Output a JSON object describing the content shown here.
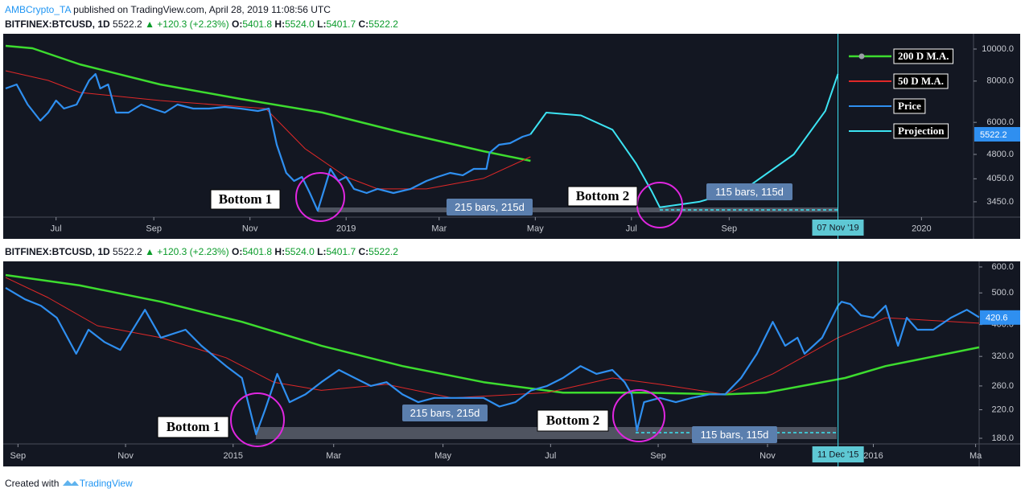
{
  "header": {
    "author": "AMBCrypto_TA",
    "text": "published on TradingView.com, April 28, 2019 11:08:56 UTC"
  },
  "chart_data": [
    {
      "type": "line",
      "symbol": {
        "name": "BITFINEX:BTCUSD, 1D",
        "last": "5522.2",
        "change": "▲ +120.3 (+2.23%)",
        "ohlc": [
          {
            "key": "O:",
            "value": "5401.8"
          },
          {
            "key": "H:",
            "value": "5524.0"
          },
          {
            "key": "L:",
            "value": "5401.7"
          },
          {
            "key": "C:",
            "value": "5522.2"
          }
        ]
      },
      "log": true,
      "ylim": [
        3100,
        11000
      ],
      "yticks": [
        {
          "value": 3450,
          "label": "3450.0"
        },
        {
          "value": 4050,
          "label": "4050.0"
        },
        {
          "value": 4800,
          "label": "4800.0"
        },
        {
          "value": 6000,
          "label": "6000.0"
        },
        {
          "value": 8000,
          "label": "8000.0"
        },
        {
          "value": 10000,
          "label": "10000.0"
        }
      ],
      "xlim": [
        0,
        614
      ],
      "xticks": [
        {
          "value": 32,
          "label": "Jul"
        },
        {
          "value": 94,
          "label": "Sep"
        },
        {
          "value": 155,
          "label": "Nov"
        },
        {
          "value": 216,
          "label": "2019"
        },
        {
          "value": 275,
          "label": "Mar"
        },
        {
          "value": 336,
          "label": "May"
        },
        {
          "value": 397,
          "label": "Jul"
        },
        {
          "value": 459,
          "label": "Sep"
        },
        {
          "value": 581,
          "label": "2020"
        }
      ],
      "series": [
        {
          "name": "200 D M.A.",
          "color": "#3ddc2f",
          "x": [
            0,
            17,
            47,
            98,
            149,
            201,
            252,
            303,
            333
          ],
          "values": [
            10227,
            10056,
            8990,
            7816,
            7066,
            6423,
            5584,
            4909,
            4590
          ]
        },
        {
          "name": "50 D M.A.",
          "color": "#e02828",
          "x": [
            0,
            27,
            47,
            98,
            165,
            190,
            216,
            236,
            267,
            303,
            333
          ],
          "values": [
            8597,
            8038,
            7391,
            6988,
            6606,
            4992,
            4103,
            3773,
            3773,
            4058,
            4720
          ]
        },
        {
          "name": "Price",
          "color": "#2f8ff0",
          "x": [
            0,
            7,
            14,
            22,
            27,
            32,
            37,
            45,
            53,
            57,
            60,
            65,
            70,
            78,
            86,
            93,
            101,
            109,
            119,
            129,
            139,
            149,
            160,
            167,
            172,
            178,
            183,
            188,
            193,
            198,
            203,
            206,
            211,
            216,
            221,
            229,
            236,
            246,
            257,
            267,
            274,
            282,
            290,
            297,
            305,
            307,
            313,
            320,
            328,
            333
          ],
          "values": [
            7600,
            7816,
            6795,
            6073,
            6423,
            6988,
            6606,
            6795,
            8038,
            8407,
            7600,
            7816,
            6423,
            6423,
            6795,
            6606,
            6423,
            6795,
            6606,
            6606,
            6682,
            6606,
            6496,
            6606,
            5134,
            4220,
            3990,
            4103,
            3667,
            3243,
            3880,
            4340,
            3990,
            4103,
            3773,
            3667,
            3773,
            3667,
            3773,
            3990,
            4103,
            4220,
            4150,
            4340,
            4340,
            4854,
            5134,
            5192,
            5430,
            5522
          ]
        },
        {
          "name": "Projection",
          "color": "#3ce3f2",
          "x": [
            333,
            343,
            365,
            385,
            400,
            410,
            415,
            440,
            470,
            500,
            520,
            528
          ],
          "values": [
            5522,
            6423,
            6300,
            5700,
            4500,
            3700,
            3319,
            3450,
            3800,
            4800,
            6500,
            8407
          ]
        }
      ],
      "last_price": {
        "value": 5522.2,
        "label": "5522.2"
      },
      "event_line": {
        "x": 528,
        "label": "07 Nov '19"
      },
      "annotations": {
        "bottom_1": "Bottom 1",
        "bottom_2": "Bottom 2",
        "span_1": "215 bars, 215d",
        "span_2": "115 bars, 115d"
      },
      "legend": "top-right"
    },
    {
      "type": "line",
      "symbol": {
        "name": "BITFINEX:BTCUSD, 1D",
        "last": "5522.2",
        "change": "▲ +120.3 (+2.23%)",
        "ohlc": [
          {
            "key": "O:",
            "value": "5401.8"
          },
          {
            "key": "H:",
            "value": "5524.0"
          },
          {
            "key": "L:",
            "value": "5401.7"
          },
          {
            "key": "C:",
            "value": "5522.2"
          }
        ]
      },
      "log": true,
      "ylim": [
        173,
        617
      ],
      "yticks": [
        {
          "value": 180,
          "label": "180.0"
        },
        {
          "value": 220,
          "label": "220.0"
        },
        {
          "value": 260,
          "label": "260.0"
        },
        {
          "value": 320,
          "label": "320.0"
        },
        {
          "value": 400,
          "label": "400.0"
        },
        {
          "value": 500,
          "label": "500.0"
        },
        {
          "value": 600,
          "label": "600.0"
        }
      ],
      "xlim": [
        0,
        552
      ],
      "xticks": [
        {
          "value": 7,
          "label": "Sep"
        },
        {
          "value": 68,
          "label": "Nov"
        },
        {
          "value": 129,
          "label": "2015"
        },
        {
          "value": 186,
          "label": "Mar"
        },
        {
          "value": 248,
          "label": "May"
        },
        {
          "value": 309,
          "label": "Jul"
        },
        {
          "value": 370,
          "label": "Sep"
        },
        {
          "value": 432,
          "label": "Nov"
        },
        {
          "value": 492,
          "label": "2016"
        },
        {
          "value": 550,
          "label": "Ma"
        }
      ],
      "series": [
        {
          "color": "#3ddc2f",
          "x": [
            0,
            42,
            88,
            134,
            179,
            225,
            271,
            316,
            362,
            408,
            431,
            476,
            499,
            552
          ],
          "values": [
            567,
            527,
            470,
            408,
            345,
            299,
            267,
            248,
            248,
            245,
            248,
            275,
            299,
            341
          ]
        },
        {
          "color": "#e02828",
          "x": [
            0,
            24,
            52,
            88,
            125,
            152,
            179,
            216,
            253,
            307,
            344,
            371,
            408,
            435,
            472,
            499,
            552
          ],
          "values": [
            557,
            484,
            397,
            365,
            317,
            267,
            252,
            263,
            239,
            248,
            275,
            263,
            245,
            283,
            365,
            420,
            404
          ]
        },
        {
          "color": "#2f8ff0",
          "x": [
            0,
            11,
            20,
            29,
            40,
            47,
            56,
            65,
            79,
            88,
            102,
            111,
            125,
            134,
            142,
            147,
            154,
            161,
            170,
            179,
            189,
            198,
            207,
            216,
            225,
            234,
            243,
            253,
            262,
            271,
            280,
            289,
            298,
            307,
            316,
            326,
            335,
            344,
            351,
            355,
            358,
            362,
            371,
            380,
            389,
            399,
            408,
            417,
            426,
            435,
            442,
            449,
            453,
            463,
            472,
            474,
            479,
            485,
            492,
            499,
            506,
            511,
            517,
            526,
            536,
            545,
            552
          ],
          "values": [
            518,
            478,
            457,
            420,
            326,
            386,
            354,
            335,
            444,
            365,
            386,
            345,
            299,
            275,
            185,
            219,
            283,
            232,
            245,
            267,
            291,
            275,
            260,
            267,
            245,
            232,
            239,
            239,
            239,
            239,
            225,
            232,
            252,
            260,
            275,
            299,
            283,
            291,
            267,
            245,
            190,
            232,
            239,
            232,
            239,
            245,
            245,
            275,
            326,
            408,
            345,
            365,
            326,
            365,
            457,
            470,
            462,
            427,
            420,
            457,
            345,
            420,
            386,
            386,
            420,
            444,
            421
          ]
        }
      ],
      "last_price": {
        "value": 420.6,
        "label": "420.6"
      },
      "event_line": {
        "x": 472,
        "label": "11 Dec '15"
      },
      "annotations": {
        "bottom_1": "Bottom 1",
        "bottom_2": "Bottom 2",
        "span_1": "215 bars, 215d",
        "span_2": "115 bars, 115d"
      }
    }
  ],
  "footer": {
    "text": "Created with",
    "brand": "TradingView"
  }
}
